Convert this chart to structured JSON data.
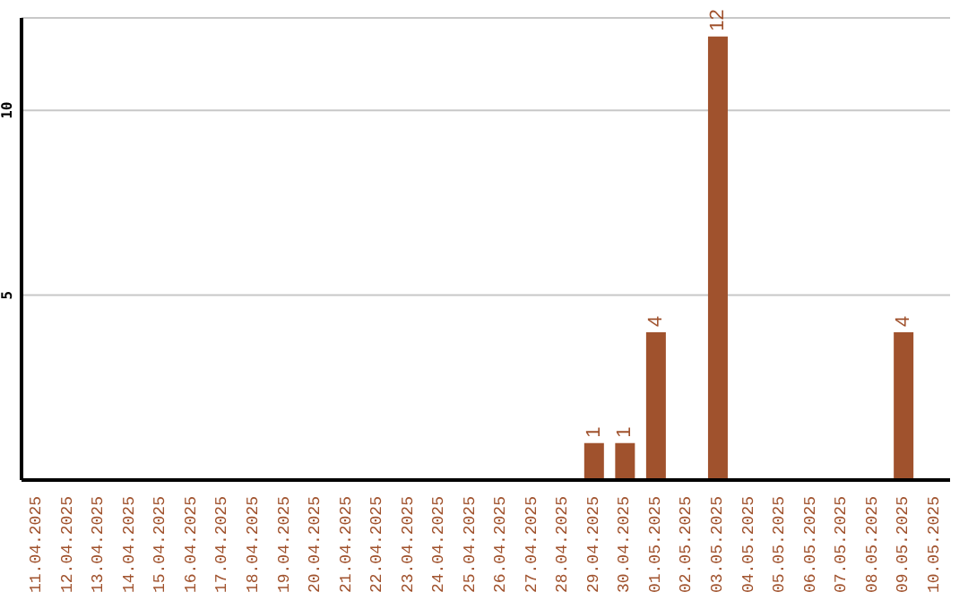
{
  "chart_data": {
    "type": "bar",
    "categories": [
      "11.04.2025",
      "12.04.2025",
      "13.04.2025",
      "14.04.2025",
      "15.04.2025",
      "16.04.2025",
      "17.04.2025",
      "18.04.2025",
      "19.04.2025",
      "20.04.2025",
      "21.04.2025",
      "22.04.2025",
      "23.04.2025",
      "24.04.2025",
      "25.04.2025",
      "26.04.2025",
      "27.04.2025",
      "28.04.2025",
      "29.04.2025",
      "30.04.2025",
      "01.05.2025",
      "02.05.2025",
      "03.05.2025",
      "04.05.2025",
      "05.05.2025",
      "06.05.2025",
      "07.05.2025",
      "08.05.2025",
      "09.05.2025",
      "10.05.2025"
    ],
    "values": [
      0,
      0,
      0,
      0,
      0,
      0,
      0,
      0,
      0,
      0,
      0,
      0,
      0,
      0,
      0,
      0,
      0,
      0,
      1,
      1,
      4,
      0,
      12,
      0,
      0,
      0,
      0,
      0,
      4,
      0
    ],
    "value_labels": [
      null,
      null,
      null,
      null,
      null,
      null,
      null,
      null,
      null,
      null,
      null,
      null,
      null,
      null,
      null,
      null,
      null,
      null,
      "1",
      "1",
      "4",
      null,
      "12",
      null,
      null,
      null,
      null,
      null,
      "4",
      null
    ],
    "color": "#a0522d",
    "ylim": [
      0,
      12.5
    ],
    "yticks": [
      5,
      10
    ],
    "grid": "y"
  }
}
